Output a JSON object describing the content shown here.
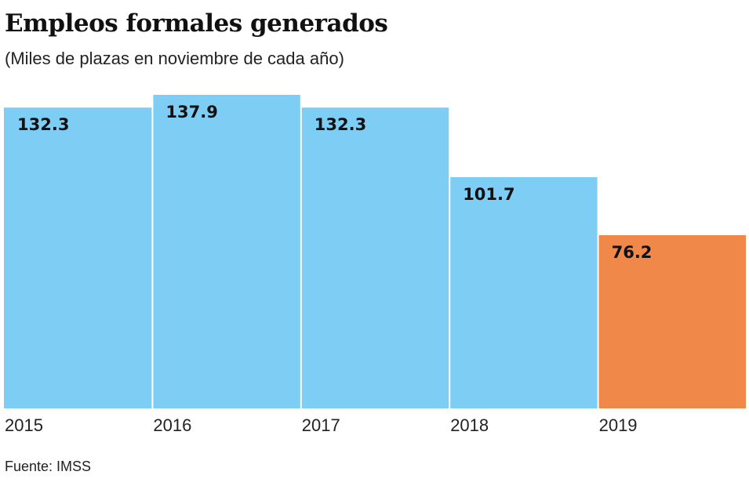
{
  "chart_data": {
    "type": "bar",
    "title": "Empleos formales generados",
    "subtitle": "(Miles de plazas en noviembre de cada año)",
    "categories": [
      "2015",
      "2016",
      "2017",
      "2018",
      "2019"
    ],
    "values": [
      132.3,
      137.9,
      132.3,
      101.7,
      76.2
    ],
    "value_labels": [
      "132.3",
      "137.9",
      "132.3",
      "101.7",
      "76.2"
    ],
    "colors": [
      "#7ecdf4",
      "#7ecdf4",
      "#7ecdf4",
      "#7ecdf4",
      "#f0884a"
    ],
    "ylim": [
      0,
      137.9
    ],
    "grid": false,
    "legend": "none",
    "source": "Fuente: IMSS"
  }
}
